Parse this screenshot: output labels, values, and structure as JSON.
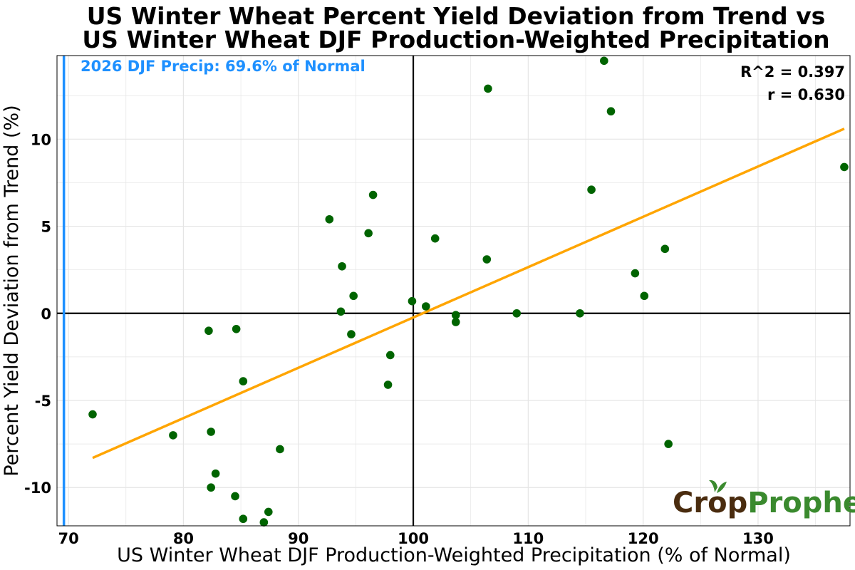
{
  "chart_data": {
    "type": "scatter",
    "title_lines": [
      "US Winter Wheat Percent Yield Deviation from Trend vs",
      "US Winter Wheat DJF Production-Weighted Precipitation"
    ],
    "xlabel": "US Winter Wheat DJF Production-Weighted Precipitation (% of Normal)",
    "ylabel": "Percent Yield Deviation from Trend (%)",
    "xlim": [
      69,
      138
    ],
    "ylim": [
      -12.2,
      14.8
    ],
    "xticks": [
      70,
      80,
      90,
      100,
      110,
      120,
      130
    ],
    "yticks": [
      -10,
      -5,
      0,
      5,
      10
    ],
    "ytick_labels": [
      "-10",
      "-5",
      "0",
      "5",
      "10"
    ],
    "grid": true,
    "colors": {
      "points": "#006400",
      "trendline": "#FFA500",
      "current_line": "#1E90FF",
      "zero_lines": "#000000",
      "grid": "#e5e5e5"
    },
    "points": [
      {
        "x": 72.1,
        "y": -5.8
      },
      {
        "x": 79.1,
        "y": -7.0
      },
      {
        "x": 82.2,
        "y": -1.0
      },
      {
        "x": 82.4,
        "y": -6.8
      },
      {
        "x": 82.4,
        "y": -10.0
      },
      {
        "x": 82.8,
        "y": -9.2
      },
      {
        "x": 84.5,
        "y": -10.5
      },
      {
        "x": 84.6,
        "y": -0.9
      },
      {
        "x": 85.2,
        "y": -3.9
      },
      {
        "x": 85.2,
        "y": -11.8
      },
      {
        "x": 87.0,
        "y": -12.0
      },
      {
        "x": 87.4,
        "y": -11.4
      },
      {
        "x": 88.4,
        "y": -7.8
      },
      {
        "x": 92.7,
        "y": 5.4
      },
      {
        "x": 93.7,
        "y": 0.1
      },
      {
        "x": 93.8,
        "y": 2.7
      },
      {
        "x": 94.6,
        "y": -1.2
      },
      {
        "x": 94.8,
        "y": 1.0
      },
      {
        "x": 96.1,
        "y": 4.6
      },
      {
        "x": 96.5,
        "y": 6.8
      },
      {
        "x": 97.8,
        "y": -4.1
      },
      {
        "x": 98.0,
        "y": -2.4
      },
      {
        "x": 99.9,
        "y": 0.7
      },
      {
        "x": 101.1,
        "y": 0.4
      },
      {
        "x": 101.9,
        "y": 4.3
      },
      {
        "x": 103.7,
        "y": -0.1
      },
      {
        "x": 103.7,
        "y": -0.5
      },
      {
        "x": 106.4,
        "y": 3.1
      },
      {
        "x": 106.5,
        "y": 12.9
      },
      {
        "x": 109.0,
        "y": 0.0
      },
      {
        "x": 114.5,
        "y": 0.0
      },
      {
        "x": 115.5,
        "y": 7.1
      },
      {
        "x": 116.6,
        "y": 14.5
      },
      {
        "x": 117.2,
        "y": 11.6
      },
      {
        "x": 119.3,
        "y": 2.3
      },
      {
        "x": 120.1,
        "y": 1.0
      },
      {
        "x": 121.9,
        "y": 3.7
      },
      {
        "x": 122.2,
        "y": -7.5
      },
      {
        "x": 137.5,
        "y": 8.4
      }
    ],
    "trendline": {
      "x": [
        72.1,
        137.5
      ],
      "y": [
        -8.3,
        10.6
      ]
    },
    "current_year_x": 69.6,
    "annotation": "2026 DJF Precip: 69.6% of Normal",
    "stats": [
      "R^2 = 0.397",
      "r = 0.630"
    ],
    "logo": {
      "part1": "Crop",
      "part2": "Prophet",
      "color1": "#4a2c0f",
      "color2": "#3a8a2e"
    }
  }
}
